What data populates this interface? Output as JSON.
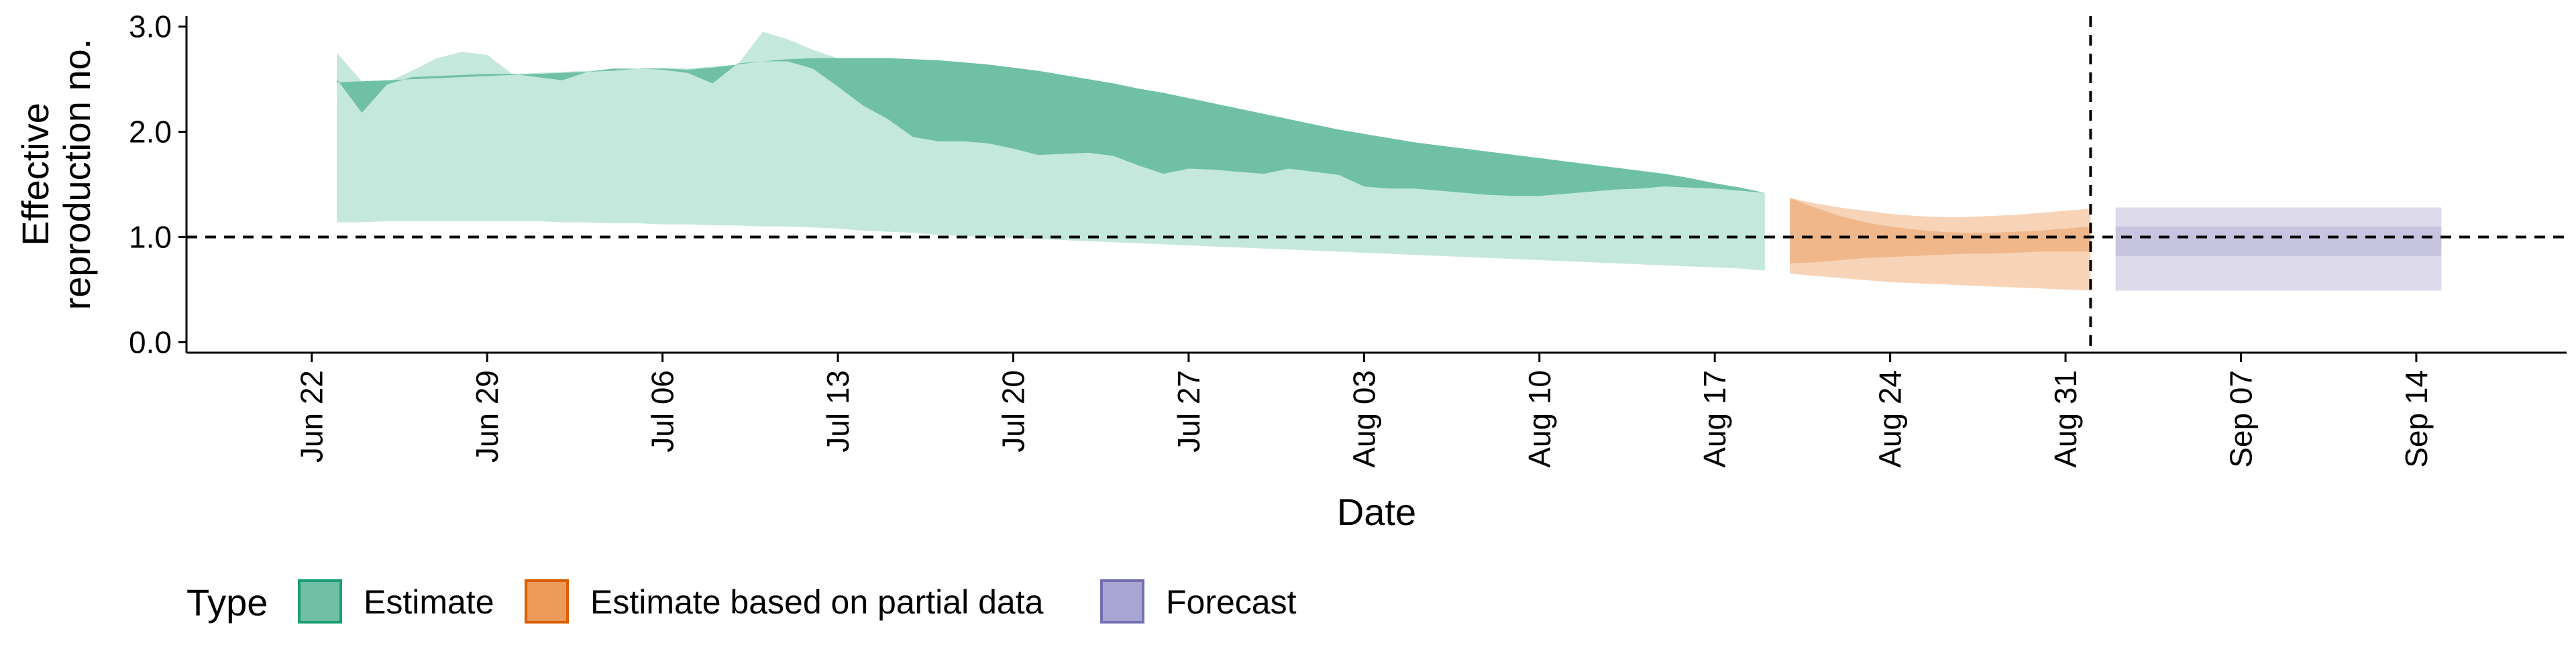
{
  "chart_data": {
    "type": "area",
    "xlabel": "Date",
    "ylabel_lines": [
      "Effective",
      "reproduction no."
    ],
    "ylim": [
      -0.1,
      3.1
    ],
    "y_ticks": [
      0.0,
      1.0,
      2.0,
      3.0
    ],
    "y_tick_labels": [
      "0.0",
      "1.0",
      "2.0",
      "3.0"
    ],
    "xlim": [
      "2020-06-17",
      "2020-09-20"
    ],
    "x_ticks": [
      "2020-06-22",
      "2020-06-29",
      "2020-07-06",
      "2020-07-13",
      "2020-07-20",
      "2020-07-27",
      "2020-08-03",
      "2020-08-10",
      "2020-08-17",
      "2020-08-24",
      "2020-08-31",
      "2020-09-07",
      "2020-09-14"
    ],
    "x_tick_labels": [
      "Jun 22",
      "Jun 29",
      "Jul 06",
      "Jul 13",
      "Jul 20",
      "Jul 27",
      "Aug 03",
      "Aug 10",
      "Aug 17",
      "Aug 24",
      "Aug 31",
      "Sep 07",
      "Sep 14"
    ],
    "reference_lines": {
      "h": 1.0,
      "v": "2020-09-01"
    },
    "legend": {
      "title": "Type",
      "position": "bottom",
      "entries": [
        "Estimate",
        "Estimate based on partial data",
        "Forecast"
      ]
    },
    "colors": {
      "Estimate": {
        "outer": "#c4e8dc",
        "inner": "#6fc0a5",
        "key": "#6fc0a5",
        "key_border": "#1b9e77"
      },
      "Estimate based on partial data": {
        "outer": "#f7d4b8",
        "inner": "#f0b78a",
        "key": "#ec9a5a",
        "key_border": "#d95f02"
      },
      "Forecast": {
        "outer": "#dcdaeb",
        "inner": "#c7c4e0",
        "key": "#a9a5d2",
        "key_border": "#7570b3"
      }
    },
    "series": [
      {
        "name": "Estimate",
        "x": [
          "2020-06-23",
          "2020-06-24",
          "2020-06-25",
          "2020-06-26",
          "2020-06-27",
          "2020-06-28",
          "2020-06-29",
          "2020-06-30",
          "2020-07-01",
          "2020-07-02",
          "2020-07-03",
          "2020-07-04",
          "2020-07-05",
          "2020-07-06",
          "2020-07-07",
          "2020-07-08",
          "2020-07-09",
          "2020-07-10",
          "2020-07-11",
          "2020-07-12",
          "2020-07-13",
          "2020-07-14",
          "2020-07-15",
          "2020-07-16",
          "2020-07-17",
          "2020-07-18",
          "2020-07-19",
          "2020-07-20",
          "2020-07-21",
          "2020-07-22",
          "2020-07-23",
          "2020-07-24",
          "2020-07-25",
          "2020-07-26",
          "2020-07-27",
          "2020-07-28",
          "2020-07-29",
          "2020-07-30",
          "2020-07-31",
          "2020-08-01",
          "2020-08-02",
          "2020-08-03",
          "2020-08-04",
          "2020-08-05",
          "2020-08-06",
          "2020-08-07",
          "2020-08-08",
          "2020-08-09",
          "2020-08-10",
          "2020-08-11",
          "2020-08-12",
          "2020-08-13",
          "2020-08-14",
          "2020-08-15",
          "2020-08-16",
          "2020-08-17",
          "2020-08-18",
          "2020-08-19"
        ],
        "upper90": [
          2.75,
          2.48,
          2.47,
          2.58,
          2.7,
          2.76,
          2.73,
          2.55,
          2.56,
          2.57,
          2.58,
          2.59,
          2.6,
          2.61,
          2.6,
          2.62,
          2.64,
          2.95,
          2.88,
          2.78,
          2.7,
          2.7,
          2.7,
          2.69,
          2.68,
          2.66,
          2.64,
          2.61,
          2.58,
          2.54,
          2.5,
          2.46,
          2.41,
          2.37,
          2.32,
          2.27,
          2.22,
          2.17,
          2.12,
          2.07,
          2.02,
          1.98,
          1.94,
          1.9,
          1.87,
          1.84,
          1.81,
          1.78,
          1.75,
          1.72,
          1.69,
          1.66,
          1.63,
          1.6,
          1.56,
          1.51,
          1.47,
          1.42
        ],
        "upper50": [
          2.47,
          2.48,
          2.49,
          2.5,
          2.51,
          2.52,
          2.53,
          2.54,
          2.55,
          2.56,
          2.57,
          2.58,
          2.6,
          2.6,
          2.59,
          2.61,
          2.64,
          2.67,
          2.69,
          2.7,
          2.7,
          2.7,
          2.7,
          2.69,
          2.68,
          2.66,
          2.64,
          2.61,
          2.58,
          2.54,
          2.5,
          2.46,
          2.41,
          2.37,
          2.32,
          2.27,
          2.22,
          2.17,
          2.12,
          2.07,
          2.02,
          1.98,
          1.94,
          1.9,
          1.87,
          1.84,
          1.81,
          1.78,
          1.75,
          1.72,
          1.69,
          1.66,
          1.63,
          1.6,
          1.56,
          1.51,
          1.47,
          1.42
        ],
        "lower50": [
          2.5,
          2.18,
          2.45,
          2.52,
          2.53,
          2.54,
          2.55,
          2.55,
          2.52,
          2.49,
          2.57,
          2.6,
          2.6,
          2.59,
          2.56,
          2.46,
          2.65,
          2.67,
          2.67,
          2.6,
          2.43,
          2.25,
          2.12,
          1.95,
          1.91,
          1.91,
          1.89,
          1.84,
          1.78,
          1.79,
          1.8,
          1.77,
          1.68,
          1.6,
          1.65,
          1.64,
          1.62,
          1.6,
          1.65,
          1.62,
          1.59,
          1.48,
          1.46,
          1.46,
          1.44,
          1.42,
          1.4,
          1.39,
          1.39,
          1.41,
          1.43,
          1.45,
          1.46,
          1.48,
          1.47,
          1.46,
          1.44,
          1.42
        ],
        "lower90": [
          1.14,
          1.14,
          1.15,
          1.15,
          1.15,
          1.15,
          1.15,
          1.15,
          1.15,
          1.14,
          1.14,
          1.13,
          1.13,
          1.12,
          1.12,
          1.11,
          1.11,
          1.1,
          1.1,
          1.09,
          1.08,
          1.06,
          1.05,
          1.04,
          1.02,
          1.01,
          1.0,
          0.99,
          0.98,
          0.97,
          0.96,
          0.95,
          0.94,
          0.93,
          0.92,
          0.91,
          0.9,
          0.89,
          0.88,
          0.87,
          0.86,
          0.85,
          0.84,
          0.83,
          0.82,
          0.81,
          0.8,
          0.79,
          0.78,
          0.77,
          0.76,
          0.75,
          0.74,
          0.73,
          0.72,
          0.71,
          0.7,
          0.68
        ]
      },
      {
        "name": "Estimate based on partial data",
        "x": [
          "2020-08-20",
          "2020-08-21",
          "2020-08-22",
          "2020-08-23",
          "2020-08-24",
          "2020-08-25",
          "2020-08-26",
          "2020-08-27",
          "2020-08-28",
          "2020-08-29",
          "2020-08-30",
          "2020-08-31",
          "2020-09-01"
        ],
        "upper90": [
          1.37,
          1.32,
          1.28,
          1.25,
          1.22,
          1.2,
          1.19,
          1.19,
          1.2,
          1.21,
          1.23,
          1.25,
          1.27
        ],
        "upper50": [
          1.37,
          1.28,
          1.2,
          1.14,
          1.1,
          1.07,
          1.05,
          1.04,
          1.04,
          1.05,
          1.06,
          1.08,
          1.1
        ],
        "lower50": [
          0.75,
          0.76,
          0.78,
          0.8,
          0.81,
          0.82,
          0.83,
          0.84,
          0.84,
          0.85,
          0.86,
          0.86,
          0.86
        ],
        "lower90": [
          0.65,
          0.63,
          0.61,
          0.59,
          0.57,
          0.56,
          0.55,
          0.54,
          0.53,
          0.52,
          0.51,
          0.5,
          0.49
        ]
      },
      {
        "name": "Forecast",
        "x": [
          "2020-09-02",
          "2020-09-15"
        ],
        "upper90": [
          1.28,
          1.28
        ],
        "upper50": [
          1.1,
          1.1
        ],
        "lower50": [
          0.82,
          0.82
        ],
        "lower90": [
          0.49,
          0.49
        ]
      }
    ]
  }
}
